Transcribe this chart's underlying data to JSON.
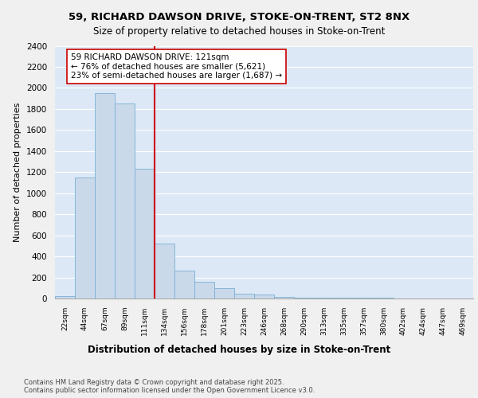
{
  "title_line1": "59, RICHARD DAWSON DRIVE, STOKE-ON-TRENT, ST2 8NX",
  "title_line2": "Size of property relative to detached houses in Stoke-on-Trent",
  "xlabel": "Distribution of detached houses by size in Stoke-on-Trent",
  "ylabel": "Number of detached properties",
  "categories": [
    "22sqm",
    "44sqm",
    "67sqm",
    "89sqm",
    "111sqm",
    "134sqm",
    "156sqm",
    "178sqm",
    "201sqm",
    "223sqm",
    "246sqm",
    "268sqm",
    "290sqm",
    "313sqm",
    "335sqm",
    "357sqm",
    "380sqm",
    "402sqm",
    "424sqm",
    "447sqm",
    "469sqm"
  ],
  "values": [
    22,
    1150,
    1950,
    1850,
    1230,
    520,
    265,
    155,
    100,
    45,
    35,
    15,
    10,
    8,
    5,
    5,
    4,
    3,
    2,
    2,
    2
  ],
  "bar_color": "#c9d9ea",
  "bar_edge_color": "#7aafd4",
  "background_color": "#dce8f5",
  "grid_color": "#ffffff",
  "vline_x": 4.5,
  "vline_color": "#cc0000",
  "annotation_box_text": "59 RICHARD DAWSON DRIVE: 121sqm\n← 76% of detached houses are smaller (5,621)\n23% of semi-detached houses are larger (1,687) →",
  "annotation_box_color": "#cc0000",
  "ylim": [
    0,
    2400
  ],
  "yticks": [
    0,
    200,
    400,
    600,
    800,
    1000,
    1200,
    1400,
    1600,
    1800,
    2000,
    2200,
    2400
  ],
  "footnote": "Contains HM Land Registry data © Crown copyright and database right 2025.\nContains public sector information licensed under the Open Government Licence v3.0."
}
